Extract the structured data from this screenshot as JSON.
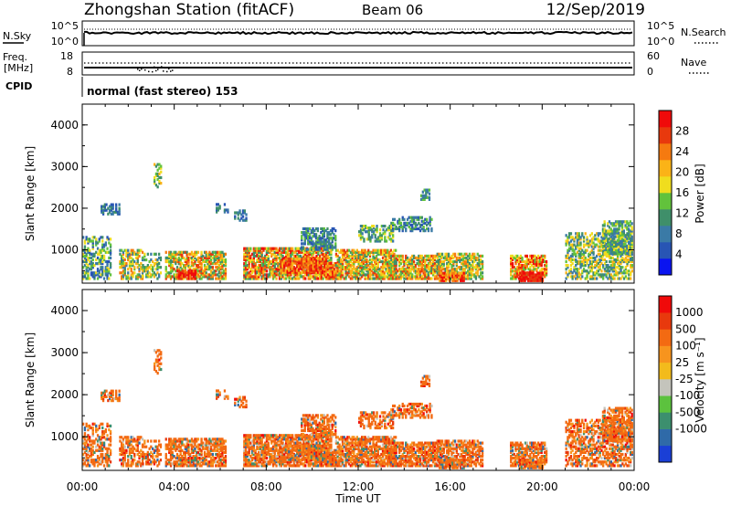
{
  "header": {
    "title": "Zhongshan Station (fitACF)",
    "beam": "Beam 06",
    "date": "12/Sep/2019"
  },
  "noise_panel": {
    "left_label": "N.Sky",
    "left_ticks": [
      "10^5",
      "10^0"
    ],
    "right_ticks": [
      "10^5",
      "10^0"
    ],
    "right_label": "N.Search"
  },
  "freq_panel": {
    "left_label_1": "Freq.",
    "left_label_2": "[MHz]",
    "left_ticks": [
      "18",
      "8"
    ],
    "right_ticks": [
      "60",
      "0"
    ],
    "right_label": "Nave"
  },
  "cpid": {
    "label": "CPID",
    "text": "normal (fast stereo) 153"
  },
  "x_axis": {
    "ticks": [
      "00:00",
      "04:00",
      "08:00",
      "12:00",
      "16:00",
      "20:00",
      "00:00"
    ],
    "label": "Time UT"
  },
  "chart_data": [
    {
      "type": "heatmap",
      "name": "power",
      "ylabel": "Slant Range [km]",
      "yticks": [
        "1000",
        "2000",
        "3000",
        "4000"
      ],
      "ylim": [
        200,
        4500
      ],
      "xlim": [
        0,
        24
      ],
      "colorbar": {
        "label": "Power [dB]",
        "ticks": [
          "4",
          "8",
          "12",
          "16",
          "20",
          "24",
          "28"
        ],
        "colors": [
          "#0a14f0",
          "#2855b4",
          "#3a7aa6",
          "#3f8f6a",
          "#62c23c",
          "#f0dd1e",
          "#fbb317",
          "#f57a10",
          "#e8390d",
          "#f00a0a"
        ]
      }
    },
    {
      "type": "heatmap",
      "name": "velocity",
      "ylabel": "Slant Range [km]",
      "yticks": [
        "1000",
        "2000",
        "3000",
        "4000"
      ],
      "ylim": [
        200,
        4500
      ],
      "xlim": [
        0,
        24
      ],
      "colorbar": {
        "label": "Velocity [m s⁻¹]",
        "ticks": [
          "1000",
          "500",
          "100",
          "25",
          "-25",
          "-100",
          "-500",
          "-1000"
        ],
        "colors": [
          "#1a3fd6",
          "#2f6aa8",
          "#3c8f6e",
          "#5cc23e",
          "#c4c4bc",
          "#f3bb1c",
          "#f7941e",
          "#f36a12",
          "#e8390d",
          "#f00a0a"
        ]
      }
    }
  ]
}
